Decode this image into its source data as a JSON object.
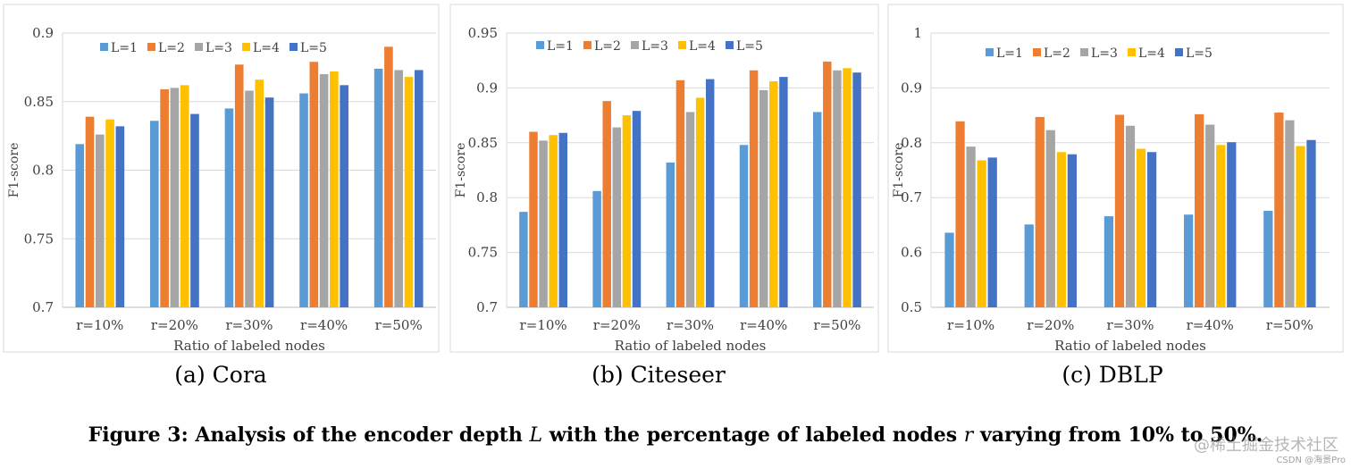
{
  "chart_data": [
    {
      "type": "bar",
      "panel_caption": "(a) Cora",
      "xlabel": "Ratio of labeled nodes",
      "ylabel": "F1-score",
      "ylim": [
        0.7,
        0.9
      ],
      "yticks": [
        "0.7",
        "0.75",
        "0.8",
        "0.85",
        "0.9"
      ],
      "categories": [
        "r=10%",
        "r=20%",
        "r=30%",
        "r=40%",
        "r=50%"
      ],
      "legend_position": "top-left",
      "series": [
        {
          "name": "L=1",
          "values": [
            0.819,
            0.836,
            0.845,
            0.856,
            0.874
          ]
        },
        {
          "name": "L=2",
          "values": [
            0.839,
            0.859,
            0.877,
            0.879,
            0.89
          ]
        },
        {
          "name": "L=3",
          "values": [
            0.826,
            0.86,
            0.858,
            0.87,
            0.873
          ]
        },
        {
          "name": "L=4",
          "values": [
            0.837,
            0.862,
            0.866,
            0.872,
            0.868
          ]
        },
        {
          "name": "L=5",
          "values": [
            0.832,
            0.841,
            0.853,
            0.862,
            0.873
          ]
        }
      ]
    },
    {
      "type": "bar",
      "panel_caption": "(b) Citeseer",
      "xlabel": "Ratio of labeled nodes",
      "ylabel": "F1-score",
      "ylim": [
        0.7,
        0.95
      ],
      "yticks": [
        "0.7",
        "0.75",
        "0.8",
        "0.85",
        "0.9",
        "0.95"
      ],
      "categories": [
        "r=10%",
        "r=20%",
        "r=30%",
        "r=40%",
        "r=50%"
      ],
      "legend_position": "top-left",
      "series": [
        {
          "name": "L=1",
          "values": [
            0.787,
            0.806,
            0.832,
            0.848,
            0.878
          ]
        },
        {
          "name": "L=2",
          "values": [
            0.86,
            0.888,
            0.907,
            0.916,
            0.924
          ]
        },
        {
          "name": "L=3",
          "values": [
            0.852,
            0.864,
            0.878,
            0.898,
            0.916
          ]
        },
        {
          "name": "L=4",
          "values": [
            0.857,
            0.875,
            0.891,
            0.906,
            0.918
          ]
        },
        {
          "name": "L=5",
          "values": [
            0.859,
            0.879,
            0.908,
            0.91,
            0.914
          ]
        }
      ]
    },
    {
      "type": "bar",
      "panel_caption": "(c) DBLP",
      "xlabel": "Ratio of labeled nodes",
      "ylabel": "F1-score",
      "ylim": [
        0.5,
        1.0
      ],
      "yticks": [
        "0.5",
        "0.6",
        "0.7",
        "0.8",
        "0.9",
        "1"
      ],
      "categories": [
        "r=10%",
        "r=20%",
        "r=30%",
        "r=40%",
        "r=50%"
      ],
      "legend_position": "top-center",
      "series": [
        {
          "name": "L=1",
          "values": [
            0.636,
            0.651,
            0.666,
            0.669,
            0.676
          ]
        },
        {
          "name": "L=2",
          "values": [
            0.839,
            0.847,
            0.851,
            0.852,
            0.855
          ]
        },
        {
          "name": "L=3",
          "values": [
            0.793,
            0.823,
            0.831,
            0.833,
            0.841
          ]
        },
        {
          "name": "L=4",
          "values": [
            0.768,
            0.783,
            0.789,
            0.796,
            0.794
          ]
        },
        {
          "name": "L=5",
          "values": [
            0.773,
            0.779,
            0.783,
            0.801,
            0.805
          ]
        }
      ]
    }
  ],
  "series_colors": [
    "#5B9BD5",
    "#ED7D31",
    "#A5A5A5",
    "#FFC000",
    "#4472C4"
  ],
  "figure_caption": {
    "prefix": "Figure 3: Analysis of the encoder depth ",
    "var1": "L",
    "middle": " with the percentage of labeled nodes ",
    "var2": "r",
    "suffix": " varying from 10% to 50%."
  },
  "watermark": {
    "main": "@稀土掘金技术社区",
    "sub": "CSDN @海景Pro"
  }
}
